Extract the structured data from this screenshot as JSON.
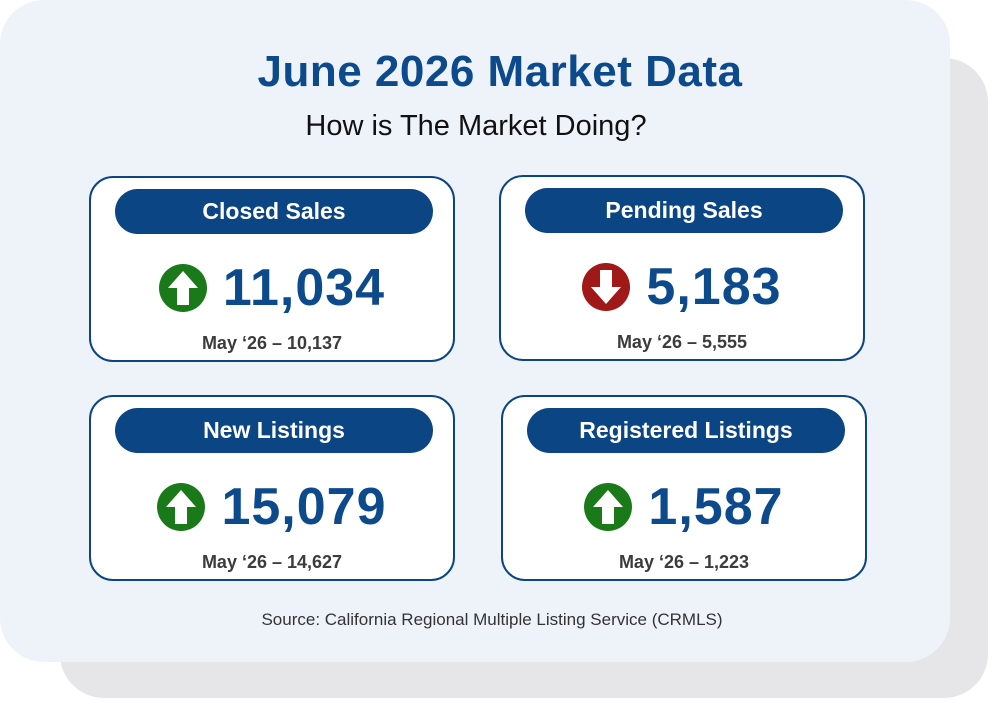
{
  "header": {
    "title": "June 2026 Market Data",
    "subtitle": "How is The Market Doing?"
  },
  "cards": [
    {
      "label": "Closed Sales",
      "value": "11,034",
      "trend": "up",
      "previous": "May ‘26 – 10,137"
    },
    {
      "label": "Pending Sales",
      "value": "5,183",
      "trend": "down",
      "previous": "May ‘26 – 5,555"
    },
    {
      "label": "New Listings",
      "value": "15,079",
      "trend": "up",
      "previous": "May ‘26 – 14,627"
    },
    {
      "label": "Registered Listings",
      "value": "1,587",
      "trend": "up",
      "previous": "May ‘26 – 1,223"
    }
  ],
  "source": "Source: California Regional Multiple Listing Service (CRMLS)",
  "colors": {
    "brand_blue": "#0c4584",
    "up_green": "#1a7a1a",
    "down_red": "#a01818"
  }
}
